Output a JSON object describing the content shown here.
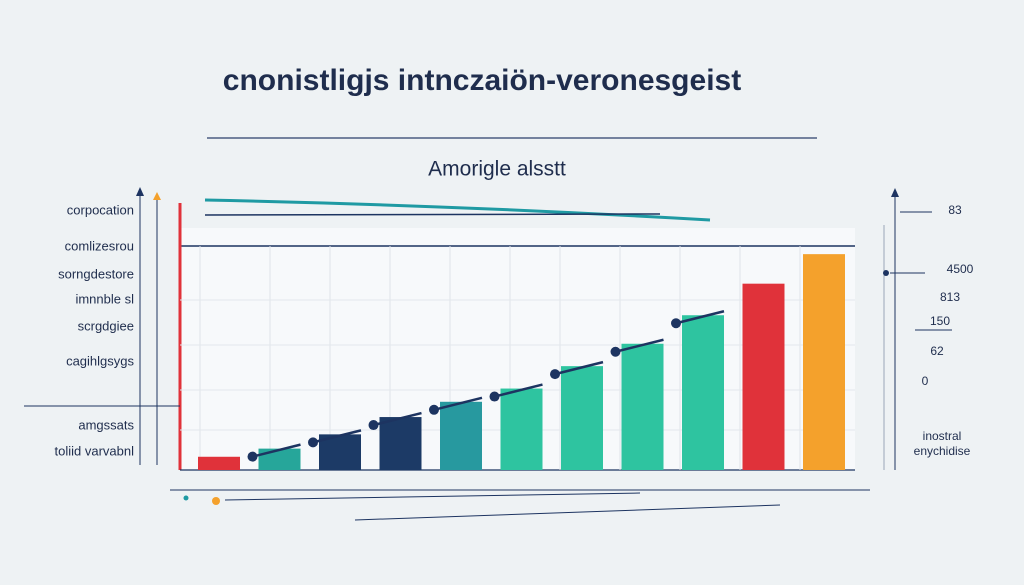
{
  "chart_data": {
    "type": "bar",
    "title": "cnonistligjs intnczaiön-veronesgeist",
    "subtitle": "Amoriglе alsstt",
    "left_labels": [
      "corpocation",
      "comlizesrou",
      "sorngdestore",
      "imnnble sl",
      "scrgdgiee",
      "cagihlgsygs",
      "amgssats",
      "toliid varvabnl"
    ],
    "right_labels": [
      "83",
      "4500",
      "813",
      "150",
      "62",
      "0",
      "inostral",
      "enychidise"
    ],
    "values": [
      13,
      21,
      35,
      52,
      67,
      80,
      102,
      124,
      152,
      183,
      212
    ],
    "colors": [
      "#e0323a",
      "#26a69a",
      "#1c3a66",
      "#1c3a66",
      "#27999f",
      "#2ec4a0",
      "#2ec4a0",
      "#2ec4a0",
      "#2ec4a0",
      "#e0323a",
      "#f4a12c"
    ],
    "ylim": [
      0,
      220
    ],
    "grid": true
  }
}
